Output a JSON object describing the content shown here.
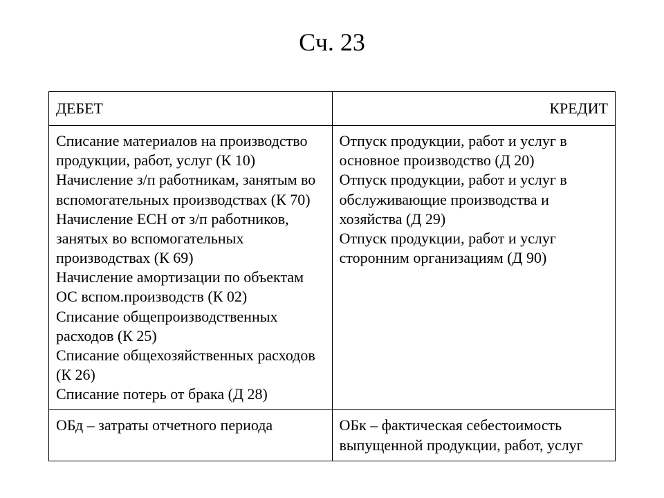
{
  "title": "Сч. 23",
  "table": {
    "columns": [
      "ДЕБЕТ",
      "КРЕДИТ"
    ],
    "debit_items": [
      "Списание материалов на производство продукции, работ, услуг (К 10)",
      "Начисление з/п работникам, занятым во вспомогательных производствах (К 70)",
      "Начисление ЕСН от з/п работников, занятых во вспомогательных производствах (К 69)",
      "Начисление амортизации по объектам ОС вспом.производств (К 02)",
      "Списание общепроизводственных расходов (К 25)",
      "Списание общехозяйственных расходов (К 26)",
      "Списание потерь от брака (Д 28)"
    ],
    "credit_items": [
      "Отпуск продукции, работ и услуг в основное производство (Д 20)",
      "Отпуск продукции, работ и услуг в обслуживающие производства и хозяйства (Д 29)",
      "Отпуск продукции, работ и услуг сторонним организациям (Д 90)"
    ],
    "summary_left": "ОБд – затраты отчетного периода",
    "summary_right": "ОБк – фактическая себестоимость выпущенной продукции, работ, услуг"
  },
  "style": {
    "background_color": "#ffffff",
    "text_color": "#000000",
    "border_color": "#000000",
    "title_fontsize": 36,
    "body_fontsize": 22,
    "font_family": "Times New Roman",
    "col_widths_pct": [
      50,
      50
    ]
  }
}
